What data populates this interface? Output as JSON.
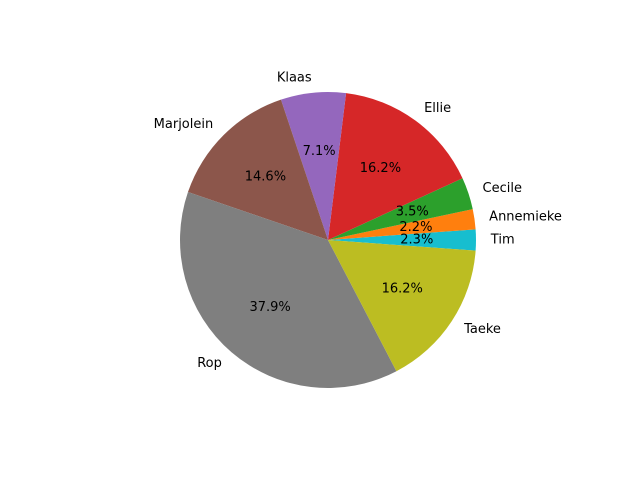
{
  "chart_data": {
    "type": "pie",
    "title": "",
    "labels": [
      "Tim",
      "Annemieke",
      "Cecile",
      "Ellie",
      "Klaas",
      "Marjolein",
      "Rop",
      "Taeke"
    ],
    "values": [
      2.3,
      2.2,
      3.5,
      16.2,
      7.1,
      14.6,
      37.9,
      16.2
    ],
    "pct_labels": [
      "2.3%",
      "2.2%",
      "3.5%",
      "16.2%",
      "7.1%",
      "14.6%",
      "37.9%",
      "16.2%"
    ],
    "colors": [
      "#17becf",
      "#ff7f0e",
      "#2ca02c",
      "#d62728",
      "#9467bd",
      "#8c564b",
      "#7f7f7f",
      "#bcbd22"
    ],
    "legend": "none"
  }
}
